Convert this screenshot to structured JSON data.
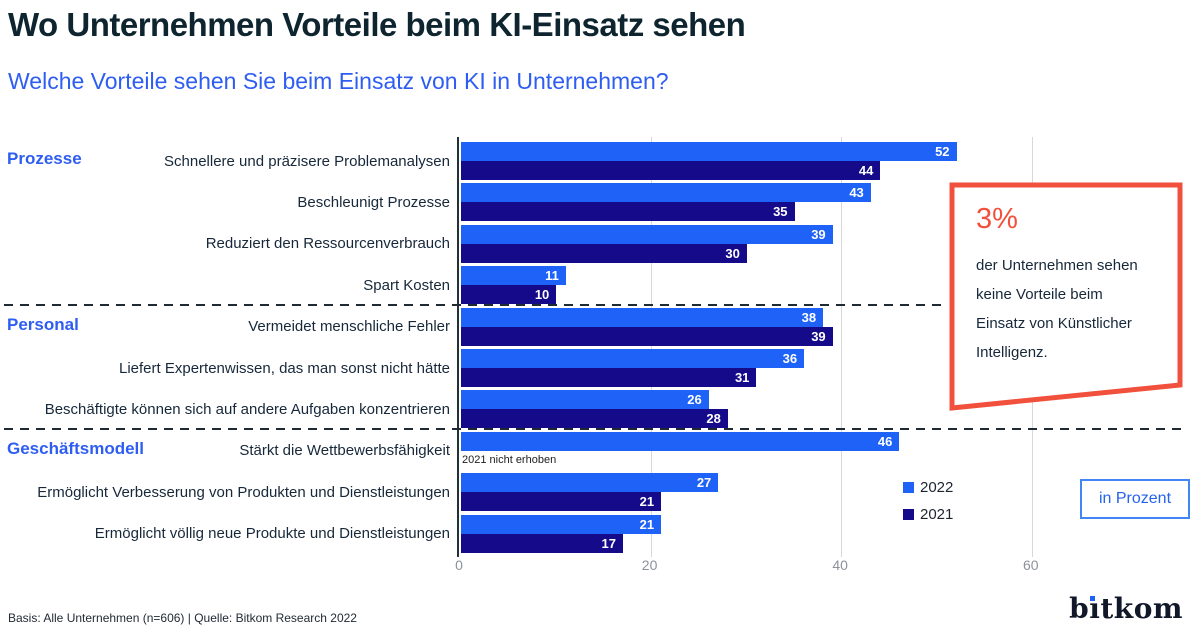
{
  "header": {
    "title": "Wo Unternehmen Vorteile beim KI-Einsatz sehen",
    "subtitle": "Welche Vorteile sehen Sie beim Einsatz von KI in Unternehmen?"
  },
  "chart_data": {
    "type": "bar",
    "orientation": "horizontal",
    "unit": "Prozent",
    "xlim": [
      0,
      70
    ],
    "xticks": [
      0,
      20,
      40,
      60
    ],
    "grid": true,
    "legend_position": "bottom-right",
    "series": [
      {
        "name": "2022",
        "color": "#1e62f7"
      },
      {
        "name": "2021",
        "color": "#150a8a"
      }
    ],
    "groups": [
      {
        "label": "Prozesse",
        "rows": [
          {
            "label": "Schnellere und präzisere Problemanalysen",
            "values": [
              52,
              44
            ]
          },
          {
            "label": "Beschleunigt Prozesse",
            "values": [
              43,
              35
            ]
          },
          {
            "label": "Reduziert den Ressourcenverbrauch",
            "values": [
              39,
              30
            ]
          },
          {
            "label": "Spart Kosten",
            "values": [
              11,
              10
            ]
          }
        ]
      },
      {
        "label": "Personal",
        "rows": [
          {
            "label": "Vermeidet menschliche Fehler",
            "values": [
              38,
              39
            ]
          },
          {
            "label": "Liefert Expertenwissen, das man sonst nicht hätte",
            "values": [
              36,
              31
            ]
          },
          {
            "label": "Beschäftigte können sich auf andere Aufgaben konzentrieren",
            "values": [
              26,
              28
            ]
          }
        ]
      },
      {
        "label": "Geschäftsmodell",
        "rows": [
          {
            "label": "Stärkt die Wettbewerbsfähigkeit",
            "values": [
              46,
              null
            ],
            "note": "2021 nicht erhoben"
          },
          {
            "label": "Ermöglicht Verbesserung von Produkten und Dienstleistungen",
            "values": [
              27,
              21
            ]
          },
          {
            "label": "Ermöglicht völlig neue Produkte und Dienstleistungen",
            "values": [
              21,
              17
            ]
          }
        ]
      }
    ]
  },
  "annotation": {
    "value": "3%",
    "text": "der Unternehmen sehen\nkeine Vorteile beim\nEinsatz von Künstlicher\nIntelligenz.",
    "border_color": "#f1503c"
  },
  "legend": {
    "items": [
      {
        "label": "2022",
        "color": "#1e62f7"
      },
      {
        "label": "2021",
        "color": "#150a8a"
      }
    ]
  },
  "unit_box_label": "in Prozent",
  "footer": {
    "basis": "Basis: Alle Unternehmen (n=606) | Quelle: Bitkom Research 2022",
    "logo_parts": {
      "first": "b",
      "i": "ı",
      "rest": "tkom"
    }
  }
}
